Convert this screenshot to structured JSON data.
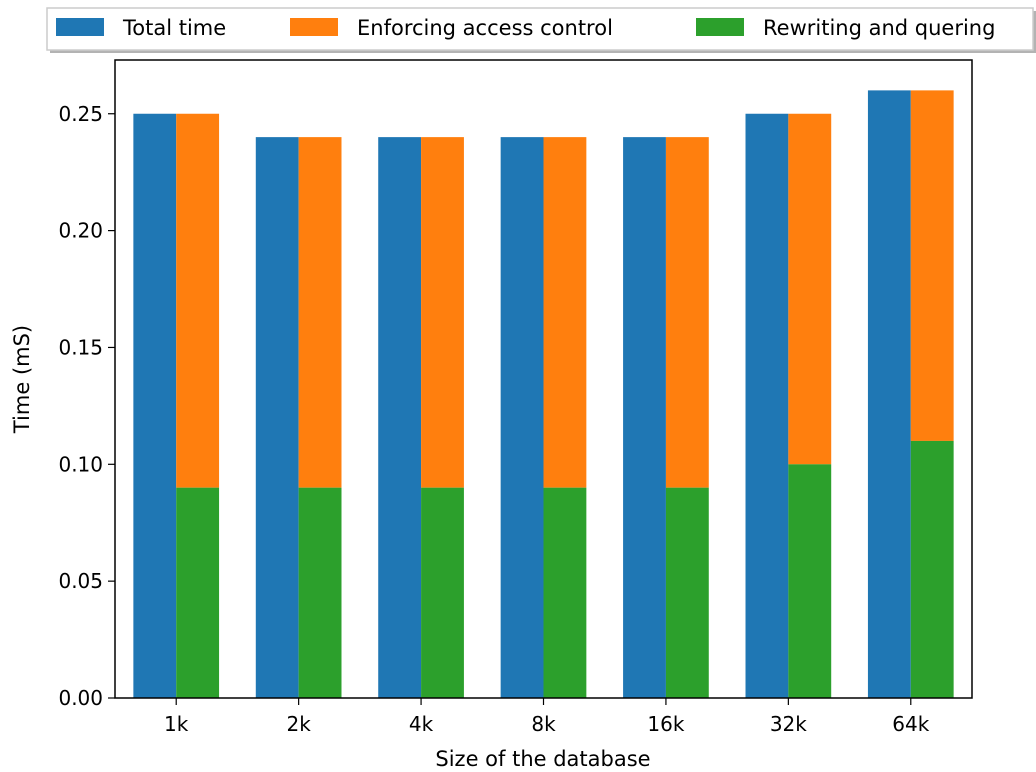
{
  "chart_data": {
    "type": "bar",
    "xlabel": "Size of the database",
    "ylabel": "Time (mS)",
    "categories": [
      "1k",
      "2k",
      "4k",
      "8k",
      "16k",
      "32k",
      "64k"
    ],
    "ylim": [
      0,
      0.273
    ],
    "yticks": [
      "0.00",
      "0.05",
      "0.10",
      "0.15",
      "0.20",
      "0.25"
    ],
    "grid": false,
    "legend_position": "top",
    "series": [
      {
        "name": "Total time",
        "color": "#1f77b4",
        "values": [
          0.25,
          0.24,
          0.24,
          0.24,
          0.24,
          0.25,
          0.26
        ]
      },
      {
        "name": "Enforcing access control",
        "color": "#ff7f0e",
        "values": [
          0.25,
          0.24,
          0.24,
          0.24,
          0.24,
          0.25,
          0.26
        ]
      },
      {
        "name": "Rewriting and quering",
        "color": "#2ca02c",
        "values": [
          0.09,
          0.09,
          0.09,
          0.09,
          0.09,
          0.1,
          0.11
        ]
      }
    ]
  }
}
